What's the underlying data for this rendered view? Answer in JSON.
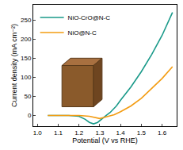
{
  "chart_data": {
    "type": "line",
    "x_label": "Potential (V vs RHE)",
    "y_label": "Current density (mA cm⁻²)",
    "series": [
      {
        "name": "NiO-CrO@N-C",
        "color": "#1a9a8a",
        "x": [
          1.05,
          1.1,
          1.15,
          1.2,
          1.23,
          1.25,
          1.27,
          1.29,
          1.31,
          1.33,
          1.35,
          1.38,
          1.4,
          1.45,
          1.5,
          1.55,
          1.6,
          1.65
        ],
        "values": [
          0,
          0,
          0,
          -2,
          -10,
          -18,
          -22,
          -18,
          -8,
          0,
          8,
          25,
          40,
          75,
          115,
          160,
          210,
          270
        ]
      },
      {
        "name": "NiO@N-C",
        "color": "#f39c12",
        "x": [
          1.05,
          1.1,
          1.15,
          1.2,
          1.25,
          1.28,
          1.3,
          1.32,
          1.35,
          1.37,
          1.4,
          1.45,
          1.5,
          1.55,
          1.6,
          1.65
        ],
        "values": [
          0,
          0,
          0,
          0,
          -2,
          -6,
          -8,
          -5,
          0,
          2,
          10,
          25,
          45,
          70,
          97,
          128
        ]
      }
    ],
    "xlim": [
      0.98,
      1.67
    ],
    "xticks": [
      {
        "value": 1,
        "label": "1.0"
      },
      1.1,
      1.2,
      1.3,
      1.4,
      1.5,
      1.6
    ],
    "ylim": [
      -28,
      290
    ],
    "yticks": [
      0,
      50,
      100,
      150,
      200,
      250
    ],
    "legend": "upper left",
    "grid": false
  }
}
